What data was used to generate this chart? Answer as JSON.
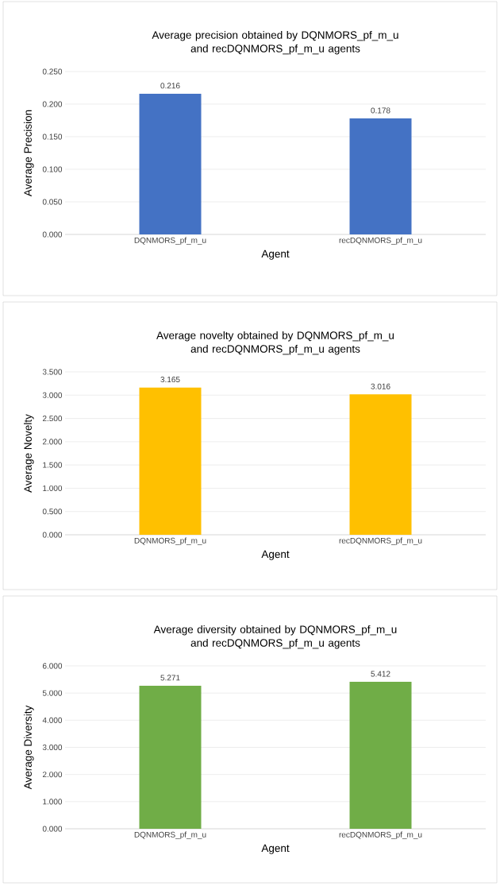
{
  "chart_data": [
    {
      "type": "bar",
      "title": "Average precision obtained by DQNMORS_pf_m_u and recDQNMORS_pf_m_u agents",
      "xlabel": "Agent",
      "ylabel": "Average Precision",
      "categories": [
        "DQNMORS_pf_m_u",
        "recDQNMORS_pf_m_u"
      ],
      "values": [
        0.216,
        0.178
      ],
      "color": "#4472c4",
      "ylim": [
        0,
        0.25
      ],
      "yticks": [
        {
          "value": 0,
          "label": "0.000"
        },
        {
          "value": 0.05,
          "label": "0.050"
        },
        {
          "value": 0.1,
          "label": "0.100"
        },
        {
          "value": 0.15,
          "label": "0.150"
        },
        {
          "value": 0.2,
          "label": "0.200"
        },
        {
          "value": 0.25,
          "label": "0.250"
        }
      ],
      "grid": "y",
      "data_labels": true
    },
    {
      "type": "bar",
      "title": "Average novelty obtained by DQNMORS_pf_m_u and recDQNMORS_pf_m_u agents",
      "xlabel": "Agent",
      "ylabel": "Average Novelty",
      "categories": [
        "DQNMORS_pf_m_u",
        "recDQNMORS_pf_m_u"
      ],
      "values": [
        3.165,
        3.016
      ],
      "color": "#ffc000",
      "ylim": [
        0,
        3.5
      ],
      "yticks": [
        {
          "value": 0,
          "label": "0.000"
        },
        {
          "value": 0.5,
          "label": "0.500"
        },
        {
          "value": 1,
          "label": "1.000"
        },
        {
          "value": 1.5,
          "label": "1.500"
        },
        {
          "value": 2,
          "label": "2.000"
        },
        {
          "value": 2.5,
          "label": "2.500"
        },
        {
          "value": 3,
          "label": "3.000"
        },
        {
          "value": 3.5,
          "label": "3.500"
        }
      ],
      "grid": "y",
      "data_labels": true
    },
    {
      "type": "bar",
      "title": "Average diversity obtained by DQNMORS_pf_m_u and recDQNMORS_pf_m_u agents",
      "xlabel": "Agent",
      "ylabel": "Average Diversity",
      "categories": [
        "DQNMORS_pf_m_u",
        "recDQNMORS_pf_m_u"
      ],
      "values": [
        5.271,
        5.412
      ],
      "color": "#70ad47",
      "ylim": [
        0,
        6
      ],
      "yticks": [
        {
          "value": 0,
          "label": "0.000"
        },
        {
          "value": 1,
          "label": "1.000"
        },
        {
          "value": 2,
          "label": "2.000"
        },
        {
          "value": 3,
          "label": "3.000"
        },
        {
          "value": 4,
          "label": "4.000"
        },
        {
          "value": 5,
          "label": "5.000"
        },
        {
          "value": 6,
          "label": "6.000"
        }
      ],
      "grid": "y",
      "data_labels": true
    }
  ]
}
